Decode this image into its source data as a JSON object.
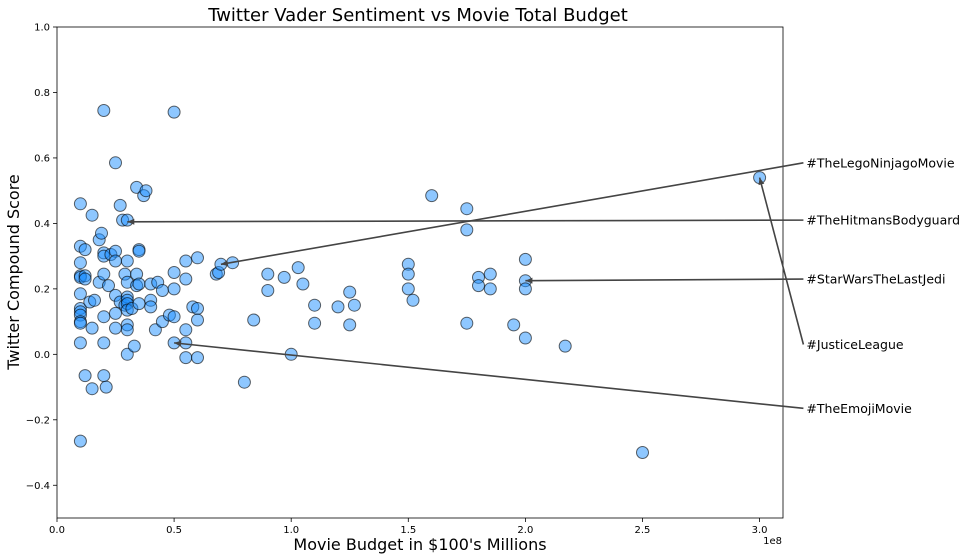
{
  "chart_data": {
    "type": "scatter",
    "title": "Twitter Vader Sentiment vs Movie Total Budget",
    "xlabel": "Movie Budget in $100's Millions",
    "ylabel": "Twitter Compound Score",
    "xlim": [
      0,
      310000000
    ],
    "ylim": [
      -0.5,
      1.0
    ],
    "x_scale_label": "1e8",
    "x_ticks": [
      0,
      50000000,
      100000000,
      150000000,
      200000000,
      250000000,
      300000000
    ],
    "x_tick_labels": [
      "0.0",
      "0.5",
      "1.0",
      "1.5",
      "2.0",
      "2.5",
      "3.0"
    ],
    "y_ticks": [
      -0.4,
      -0.2,
      0.0,
      0.2,
      0.4,
      0.6,
      0.8,
      1.0
    ],
    "y_tick_labels": [
      "−0.4",
      "−0.2",
      "0.0",
      "0.2",
      "0.4",
      "0.6",
      "0.8",
      "1.0"
    ],
    "grid": false,
    "marker_color": "#1e90ff",
    "marker_edge": "#000000",
    "points": [
      [
        10000000,
        0.46
      ],
      [
        10000000,
        0.33
      ],
      [
        10000000,
        0.28
      ],
      [
        10000000,
        0.24
      ],
      [
        10000000,
        0.235
      ],
      [
        10000000,
        0.185
      ],
      [
        10000000,
        0.14
      ],
      [
        10000000,
        0.13
      ],
      [
        10000000,
        0.12
      ],
      [
        10000000,
        0.1
      ],
      [
        10000000,
        0.095
      ],
      [
        10000000,
        0.035
      ],
      [
        10000000,
        -0.265
      ],
      [
        12000000,
        0.32
      ],
      [
        12000000,
        0.24
      ],
      [
        12000000,
        0.23
      ],
      [
        12000000,
        -0.065
      ],
      [
        14000000,
        0.16
      ],
      [
        15000000,
        0.425
      ],
      [
        15000000,
        0.08
      ],
      [
        15000000,
        -0.105
      ],
      [
        16000000,
        0.165
      ],
      [
        18000000,
        0.35
      ],
      [
        18000000,
        0.22
      ],
      [
        19000000,
        0.37
      ],
      [
        20000000,
        0.745
      ],
      [
        20000000,
        0.31
      ],
      [
        20000000,
        0.3
      ],
      [
        20000000,
        0.245
      ],
      [
        20000000,
        0.115
      ],
      [
        20000000,
        0.035
      ],
      [
        20000000,
        -0.065
      ],
      [
        21000000,
        -0.1
      ],
      [
        22000000,
        0.21
      ],
      [
        23000000,
        0.305
      ],
      [
        25000000,
        0.585
      ],
      [
        25000000,
        0.315
      ],
      [
        25000000,
        0.285
      ],
      [
        25000000,
        0.18
      ],
      [
        25000000,
        0.125
      ],
      [
        25000000,
        0.08
      ],
      [
        27000000,
        0.455
      ],
      [
        27000000,
        0.16
      ],
      [
        28000000,
        0.41
      ],
      [
        29000000,
        0.245
      ],
      [
        29000000,
        0.15
      ],
      [
        30000000,
        0.41
      ],
      [
        30000000,
        0.285
      ],
      [
        30000000,
        0.22
      ],
      [
        30000000,
        0.175
      ],
      [
        30000000,
        0.165
      ],
      [
        30000000,
        0.155
      ],
      [
        30000000,
        0.135
      ],
      [
        30000000,
        0.09
      ],
      [
        30000000,
        0.075
      ],
      [
        30000000,
        0.0
      ],
      [
        32000000,
        0.14
      ],
      [
        33000000,
        0.025
      ],
      [
        34000000,
        0.51
      ],
      [
        34000000,
        0.245
      ],
      [
        34000000,
        0.21
      ],
      [
        35000000,
        0.32
      ],
      [
        35000000,
        0.315
      ],
      [
        35000000,
        0.215
      ],
      [
        35000000,
        0.155
      ],
      [
        37000000,
        0.485
      ],
      [
        38000000,
        0.5
      ],
      [
        40000000,
        0.215
      ],
      [
        40000000,
        0.165
      ],
      [
        40000000,
        0.145
      ],
      [
        42000000,
        0.075
      ],
      [
        43000000,
        0.22
      ],
      [
        45000000,
        0.195
      ],
      [
        45000000,
        0.1
      ],
      [
        48000000,
        0.12
      ],
      [
        50000000,
        0.74
      ],
      [
        50000000,
        0.25
      ],
      [
        50000000,
        0.2
      ],
      [
        50000000,
        0.115
      ],
      [
        50000000,
        0.035
      ],
      [
        55000000,
        0.285
      ],
      [
        55000000,
        0.23
      ],
      [
        55000000,
        0.075
      ],
      [
        55000000,
        0.035
      ],
      [
        55000000,
        -0.01
      ],
      [
        58000000,
        0.145
      ],
      [
        60000000,
        0.295
      ],
      [
        60000000,
        0.14
      ],
      [
        60000000,
        0.105
      ],
      [
        60000000,
        -0.01
      ],
      [
        68000000,
        0.245
      ],
      [
        69000000,
        0.25
      ],
      [
        70000000,
        0.275
      ],
      [
        75000000,
        0.28
      ],
      [
        80000000,
        -0.085
      ],
      [
        84000000,
        0.105
      ],
      [
        90000000,
        0.245
      ],
      [
        90000000,
        0.195
      ],
      [
        97000000,
        0.235
      ],
      [
        100000000,
        0.0
      ],
      [
        103000000,
        0.265
      ],
      [
        105000000,
        0.215
      ],
      [
        110000000,
        0.15
      ],
      [
        110000000,
        0.095
      ],
      [
        120000000,
        0.145
      ],
      [
        125000000,
        0.19
      ],
      [
        125000000,
        0.09
      ],
      [
        127000000,
        0.15
      ],
      [
        150000000,
        0.275
      ],
      [
        150000000,
        0.245
      ],
      [
        150000000,
        0.2
      ],
      [
        152000000,
        0.165
      ],
      [
        160000000,
        0.485
      ],
      [
        175000000,
        0.445
      ],
      [
        175000000,
        0.38
      ],
      [
        175000000,
        0.095
      ],
      [
        180000000,
        0.235
      ],
      [
        180000000,
        0.21
      ],
      [
        185000000,
        0.245
      ],
      [
        185000000,
        0.2
      ],
      [
        195000000,
        0.09
      ],
      [
        200000000,
        0.29
      ],
      [
        200000000,
        0.225
      ],
      [
        200000000,
        0.2
      ],
      [
        200000000,
        0.05
      ],
      [
        217000000,
        0.025
      ],
      [
        250000000,
        -0.3
      ],
      [
        300000000,
        0.54
      ]
    ],
    "annotations": [
      {
        "label": "#TheLegoNinjagoMovie",
        "point": [
          70000000,
          0.275
        ],
        "text_pos": [
          320000000,
          0.585
        ]
      },
      {
        "label": "#TheHitmansBodyguard",
        "point": [
          30000000,
          0.405
        ],
        "text_pos": [
          320000000,
          0.41
        ]
      },
      {
        "label": "#StarWarsTheLastJedi",
        "point": [
          200000000,
          0.225
        ],
        "text_pos": [
          320000000,
          0.23
        ]
      },
      {
        "label": "#JusticeLeague",
        "point": [
          300000000,
          0.54
        ],
        "text_pos": [
          320000000,
          0.03
        ]
      },
      {
        "label": "#TheEmojiMovie",
        "point": [
          50000000,
          0.035
        ],
        "text_pos": [
          320000000,
          -0.165
        ]
      }
    ]
  }
}
